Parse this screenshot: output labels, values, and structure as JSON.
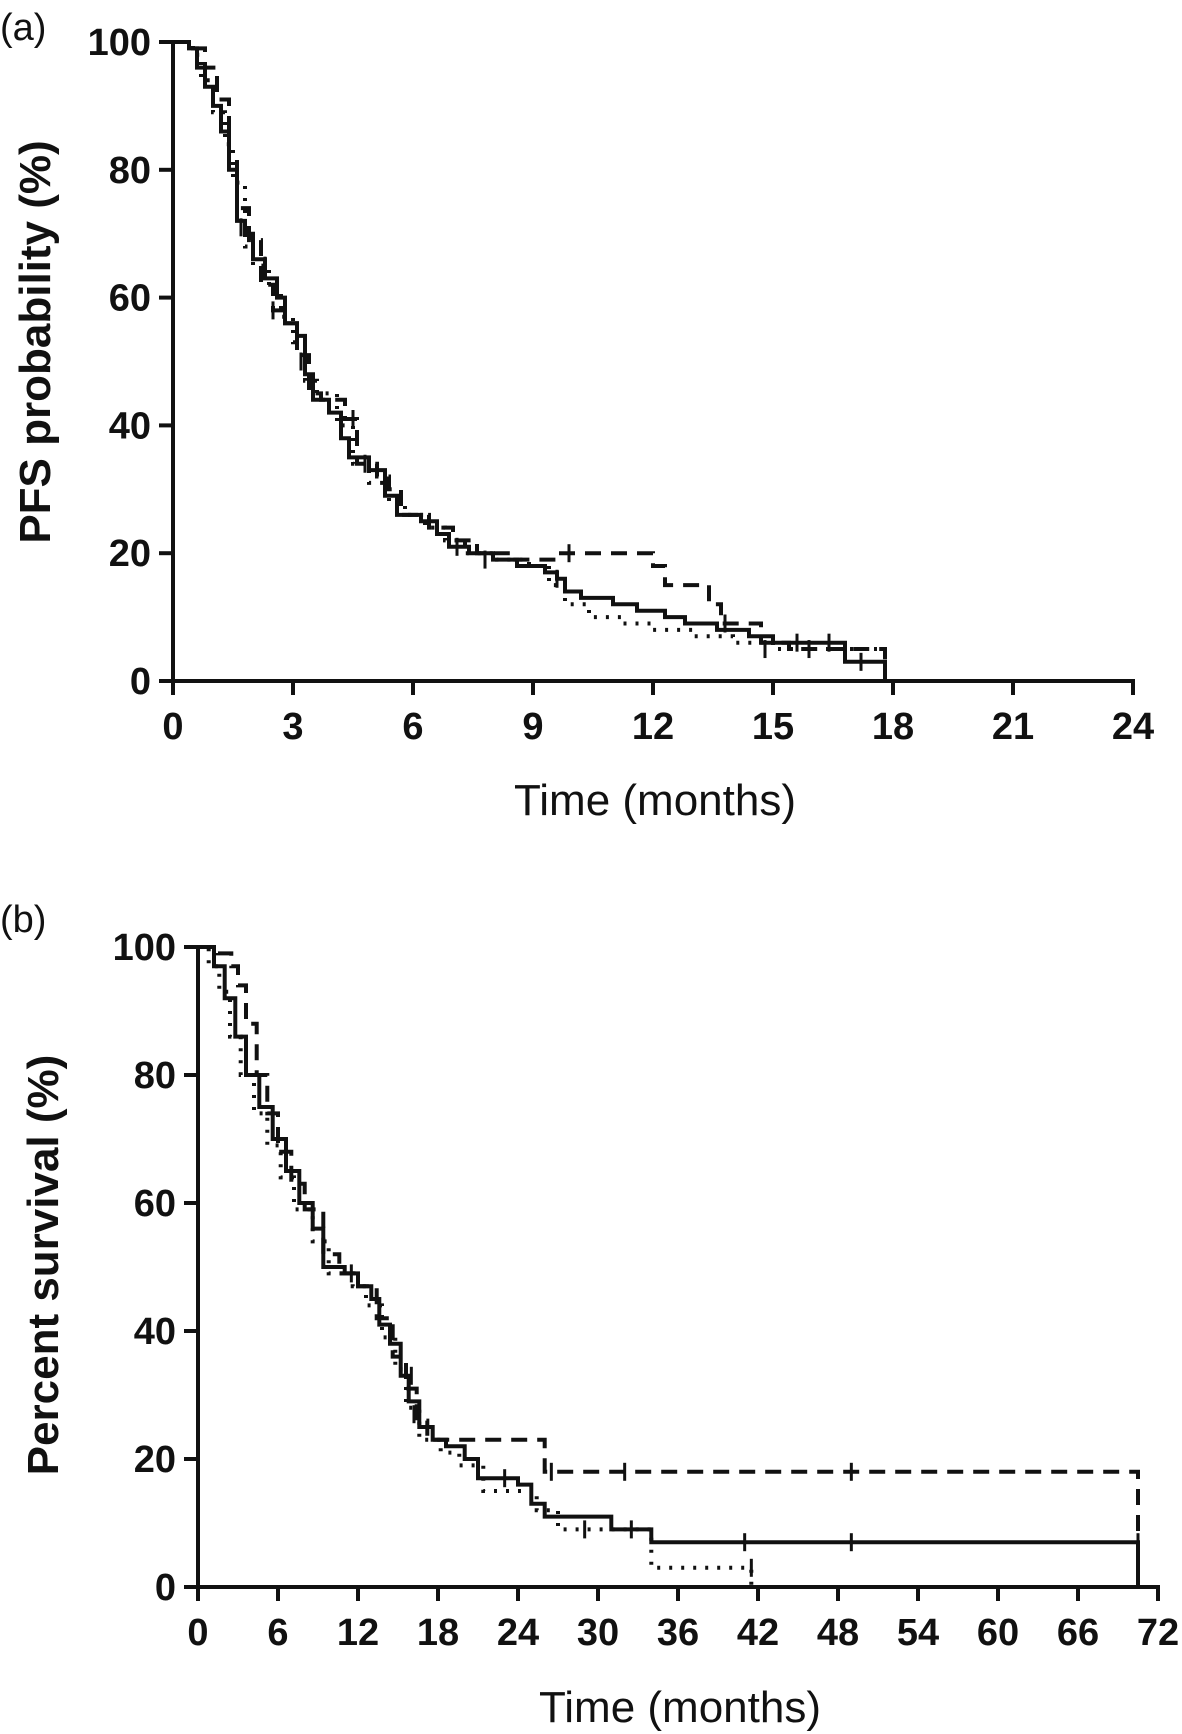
{
  "chart_data": [
    {
      "panel_label": "(a)",
      "type": "line",
      "xlabel": "Time (months)",
      "ylabel": "PFS probability (%)",
      "xlim": [
        0,
        24
      ],
      "ylim": [
        0,
        100
      ],
      "xticks": [
        0,
        3,
        6,
        9,
        12,
        15,
        18,
        21,
        24
      ],
      "yticks": [
        0,
        20,
        40,
        60,
        80,
        100
      ],
      "series": [
        {
          "style": "solid",
          "steps": [
            [
              0,
              100
            ],
            [
              0.4,
              99
            ],
            [
              0.6,
              96
            ],
            [
              0.8,
              93
            ],
            [
              1.0,
              90
            ],
            [
              1.2,
              86
            ],
            [
              1.4,
              80
            ],
            [
              1.6,
              72
            ],
            [
              1.8,
              70
            ],
            [
              2.0,
              66
            ],
            [
              2.3,
              63
            ],
            [
              2.6,
              60
            ],
            [
              2.8,
              56
            ],
            [
              3.1,
              54
            ],
            [
              3.3,
              48
            ],
            [
              3.5,
              44
            ],
            [
              3.9,
              42
            ],
            [
              4.2,
              38
            ],
            [
              4.4,
              35
            ],
            [
              4.9,
              33
            ],
            [
              5.3,
              29
            ],
            [
              5.6,
              26
            ],
            [
              6.2,
              25
            ],
            [
              6.6,
              23
            ],
            [
              6.9,
              21
            ],
            [
              7.4,
              20
            ],
            [
              8.0,
              19
            ],
            [
              8.6,
              18
            ],
            [
              9.3,
              17
            ],
            [
              9.6,
              16
            ],
            [
              9.8,
              14
            ],
            [
              10.2,
              13
            ],
            [
              11.0,
              12
            ],
            [
              11.6,
              11
            ],
            [
              12.3,
              10
            ],
            [
              12.8,
              9
            ],
            [
              13.6,
              8
            ],
            [
              14.4,
              7
            ],
            [
              15.0,
              6
            ],
            [
              16.8,
              3
            ],
            [
              17.8,
              0
            ]
          ],
          "censored": [
            [
              1.7,
              71
            ],
            [
              2.3,
              65
            ],
            [
              4.8,
              34
            ],
            [
              7.1,
              21
            ],
            [
              9.6,
              16
            ],
            [
              15.6,
              6
            ],
            [
              16.4,
              6
            ],
            [
              17.2,
              3
            ]
          ]
        },
        {
          "style": "dashed",
          "steps": [
            [
              0,
              100
            ],
            [
              0.5,
              99
            ],
            [
              0.8,
              96
            ],
            [
              1.1,
              91
            ],
            [
              1.4,
              82
            ],
            [
              1.6,
              74
            ],
            [
              1.9,
              69
            ],
            [
              2.2,
              62
            ],
            [
              2.5,
              58
            ],
            [
              2.8,
              56
            ],
            [
              3.1,
              51
            ],
            [
              3.4,
              45
            ],
            [
              3.7,
              44
            ],
            [
              4.3,
              41
            ],
            [
              4.6,
              34
            ],
            [
              5.1,
              32
            ],
            [
              5.4,
              30
            ],
            [
              5.7,
              26
            ],
            [
              6.4,
              24
            ],
            [
              7.0,
              22
            ],
            [
              7.6,
              20
            ],
            [
              8.5,
              19
            ],
            [
              9.6,
              20
            ],
            [
              12.0,
              18
            ],
            [
              12.3,
              15
            ],
            [
              13.4,
              12
            ],
            [
              13.7,
              9
            ],
            [
              14.1,
              9
            ],
            [
              14.7,
              6
            ],
            [
              15.4,
              5
            ],
            [
              17.8,
              0
            ]
          ],
          "censored": [
            [
              2.5,
              58
            ],
            [
              4.5,
              41
            ],
            [
              9.9,
              20
            ],
            [
              13.8,
              9
            ],
            [
              15.9,
              5
            ]
          ]
        },
        {
          "style": "dotted",
          "steps": [
            [
              0,
              100
            ],
            [
              0.5,
              98
            ],
            [
              0.7,
              94
            ],
            [
              1.0,
              89
            ],
            [
              1.3,
              84
            ],
            [
              1.5,
              78
            ],
            [
              1.8,
              68
            ],
            [
              2.0,
              65
            ],
            [
              2.4,
              61
            ],
            [
              2.7,
              57
            ],
            [
              3.0,
              53
            ],
            [
              3.3,
              47
            ],
            [
              3.6,
              45
            ],
            [
              4.1,
              40
            ],
            [
              4.5,
              34
            ],
            [
              4.9,
              31
            ],
            [
              5.4,
              28
            ],
            [
              5.8,
              26
            ],
            [
              6.3,
              24
            ],
            [
              6.8,
              22
            ],
            [
              7.3,
              20
            ],
            [
              8.1,
              19
            ],
            [
              8.9,
              18
            ],
            [
              9.4,
              15
            ],
            [
              9.8,
              12
            ],
            [
              10.4,
              10
            ],
            [
              11.2,
              9
            ],
            [
              12.0,
              8
            ],
            [
              13.0,
              7
            ],
            [
              14.0,
              6
            ],
            [
              15.0,
              5
            ],
            [
              17.8,
              0
            ]
          ],
          "censored": [
            [
              3.2,
              50
            ],
            [
              7.8,
              19
            ],
            [
              14.8,
              5
            ]
          ]
        }
      ]
    },
    {
      "panel_label": "(b)",
      "type": "line",
      "xlabel": "Time (months)",
      "ylabel": "Percent survival (%)",
      "xlim": [
        0,
        72
      ],
      "ylim": [
        0,
        100
      ],
      "xticks": [
        0,
        6,
        12,
        18,
        24,
        30,
        36,
        42,
        48,
        54,
        60,
        66,
        72
      ],
      "yticks": [
        0,
        20,
        40,
        60,
        80,
        100
      ],
      "series": [
        {
          "style": "solid",
          "steps": [
            [
              0,
              100
            ],
            [
              1.2,
              97
            ],
            [
              2.0,
              92
            ],
            [
              2.8,
              86
            ],
            [
              3.6,
              80
            ],
            [
              4.6,
              75
            ],
            [
              5.6,
              70
            ],
            [
              6.6,
              65
            ],
            [
              7.6,
              60
            ],
            [
              8.6,
              56
            ],
            [
              9.4,
              50
            ],
            [
              11.0,
              49
            ],
            [
              12.0,
              47
            ],
            [
              13.0,
              45
            ],
            [
              13.6,
              41
            ],
            [
              14.4,
              38
            ],
            [
              15.2,
              33
            ],
            [
              15.8,
              29
            ],
            [
              16.6,
              25
            ],
            [
              17.6,
              23
            ],
            [
              18.6,
              22
            ],
            [
              20.0,
              20
            ],
            [
              21.0,
              17
            ],
            [
              24.0,
              16
            ],
            [
              25.0,
              13
            ],
            [
              26.0,
              11
            ],
            [
              31.0,
              9
            ],
            [
              34.0,
              7
            ],
            [
              70.5,
              0
            ]
          ],
          "censored": [
            [
              11.5,
              49
            ],
            [
              16.2,
              27
            ],
            [
              23.0,
              17
            ],
            [
              32.5,
              9
            ],
            [
              41.0,
              7
            ],
            [
              49.0,
              7
            ],
            [
              70.5,
              7
            ]
          ]
        },
        {
          "style": "dashed",
          "steps": [
            [
              0,
              100
            ],
            [
              1.5,
              99
            ],
            [
              2.5,
              97
            ],
            [
              3.0,
              94
            ],
            [
              3.6,
              88
            ],
            [
              4.4,
              80
            ],
            [
              5.2,
              74
            ],
            [
              6.0,
              68
            ],
            [
              7.0,
              63
            ],
            [
              8.0,
              59
            ],
            [
              9.4,
              52
            ],
            [
              10.6,
              49
            ],
            [
              12.0,
              47
            ],
            [
              13.4,
              42
            ],
            [
              14.6,
              36
            ],
            [
              15.6,
              31
            ],
            [
              16.4,
              26
            ],
            [
              17.2,
              23
            ],
            [
              26.0,
              18
            ],
            [
              70.5,
              14
            ],
            [
              70.5,
              0
            ]
          ],
          "censored": [
            [
              16.0,
              33
            ],
            [
              26.5,
              18
            ],
            [
              32.0,
              18
            ],
            [
              49.0,
              18
            ]
          ]
        },
        {
          "style": "dotted",
          "steps": [
            [
              0,
              100
            ],
            [
              0.8,
              97
            ],
            [
              1.6,
              93
            ],
            [
              2.4,
              86
            ],
            [
              3.2,
              80
            ],
            [
              4.2,
              74
            ],
            [
              5.2,
              69
            ],
            [
              6.2,
              64
            ],
            [
              7.2,
              59
            ],
            [
              8.6,
              54
            ],
            [
              9.8,
              49
            ],
            [
              11.6,
              47
            ],
            [
              12.6,
              44
            ],
            [
              13.8,
              39
            ],
            [
              14.8,
              34
            ],
            [
              15.6,
              28
            ],
            [
              16.6,
              23
            ],
            [
              18.2,
              21
            ],
            [
              19.6,
              19
            ],
            [
              21.4,
              15
            ],
            [
              25.4,
              12
            ],
            [
              27.0,
              9
            ],
            [
              34.0,
              3
            ],
            [
              41.5,
              3
            ],
            [
              41.5,
              0
            ]
          ],
          "censored": [
            [
              29.0,
              9
            ],
            [
              41.5,
              3
            ]
          ]
        }
      ]
    }
  ]
}
